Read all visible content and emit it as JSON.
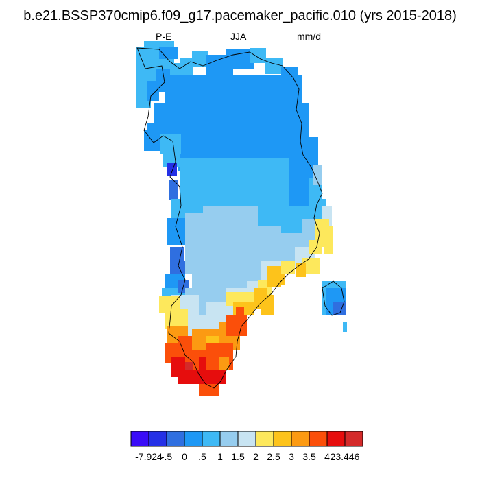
{
  "title": "b.e21.BSSP370cmip6.f09_g17.pacemaker_pacific.010 (yrs 2015-2018)",
  "subtitle_left": "P-E",
  "subtitle_center": "JJA",
  "subtitle_right": "mm/d",
  "colorbar": {
    "colors": [
      "#3a0cf7",
      "#2430e6",
      "#2f6fe0",
      "#1e98f5",
      "#3eb9f5",
      "#96cdef",
      "#c8e4f2",
      "#fde85c",
      "#fdc31b",
      "#fc9a12",
      "#fb4f0a",
      "#e60d0d",
      "#d42a2a"
    ],
    "labels": [
      "-7.924",
      "-.5",
      "0",
      ".5",
      "1",
      "1.5",
      "2",
      "2.5",
      "3",
      "3.5",
      "4",
      "23.446"
    ]
  }
}
